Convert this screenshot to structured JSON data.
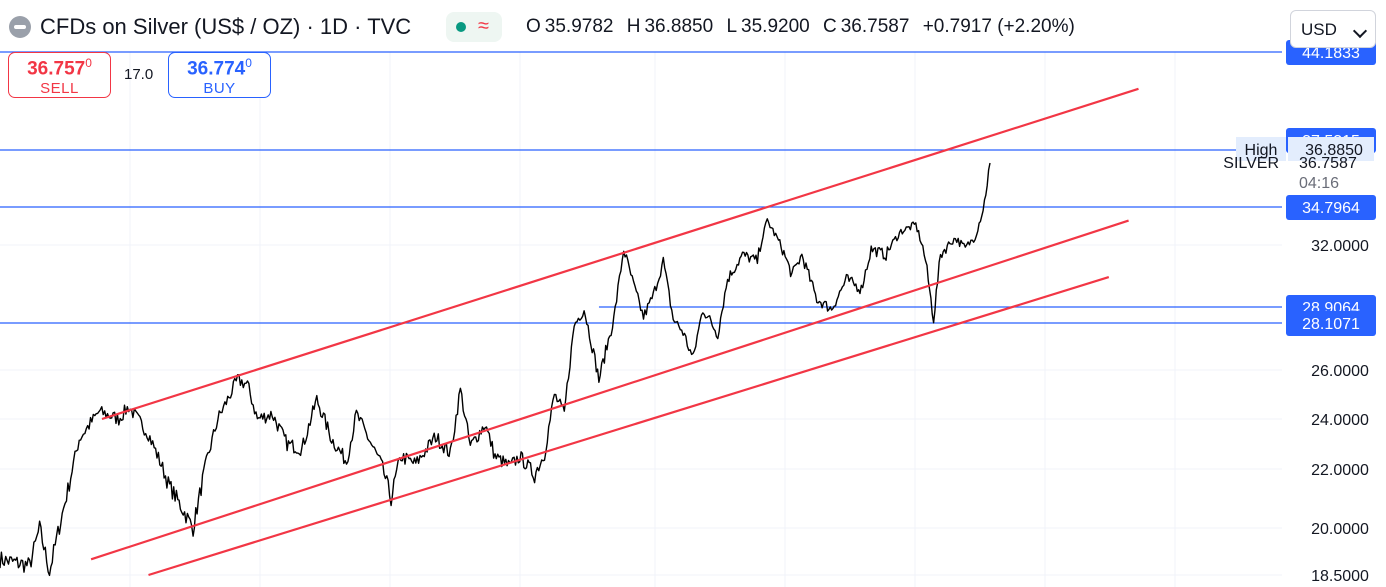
{
  "header": {
    "title": "CFDs on Silver (US$ / OZ) · 1D · TVC",
    "ohlc": [
      {
        "key": "O",
        "value": "35.9782"
      },
      {
        "key": "H",
        "value": "36.8850"
      },
      {
        "key": "L",
        "value": "35.9200"
      },
      {
        "key": "C",
        "value": "36.7587"
      }
    ],
    "change": "+0.7917 (+2.20%)",
    "currency": "USD"
  },
  "trade": {
    "sell_price": "36.757",
    "sell_price_sup": "0",
    "sell_label": "SELL",
    "spread": "17.0",
    "buy_price": "36.774",
    "buy_price_sup": "0",
    "buy_label": "BUY"
  },
  "colors": {
    "price_line": "#000000",
    "channel": "#f23645",
    "hline": "#2962ff",
    "label_bg": "#2962ff",
    "high_bg": "#e3edfd"
  },
  "chart_data": {
    "type": "line",
    "title": "CFDs on Silver (US$ / OZ) · 1D · TVC",
    "y_axis_ticks": [
      32.0,
      26.0,
      24.0,
      22.0,
      20.0,
      18.5
    ],
    "y_axis_tick_labels": [
      "32.0000",
      "26.0000",
      "24.0000",
      "22.0000",
      "20.0000",
      "18.5000"
    ],
    "x_range": [
      0,
      100
    ],
    "price_series": {
      "name": "SILVER",
      "anchors": [
        [
          0,
          19.0
        ],
        [
          3,
          18.8
        ],
        [
          4,
          20.0
        ],
        [
          5,
          18.6
        ],
        [
          7,
          21.5
        ],
        [
          8,
          23.2
        ],
        [
          10,
          24.3
        ],
        [
          12,
          24.0
        ],
        [
          13,
          24.5
        ],
        [
          15,
          23.4
        ],
        [
          17,
          21.5
        ],
        [
          18.5,
          20.6
        ],
        [
          19.5,
          20.0
        ],
        [
          21,
          22.5
        ],
        [
          22,
          24.0
        ],
        [
          24,
          25.6
        ],
        [
          25,
          25.4
        ],
        [
          26,
          24.0
        ],
        [
          27.5,
          24.2
        ],
        [
          29,
          23.0
        ],
        [
          30.5,
          22.8
        ],
        [
          32,
          24.8
        ],
        [
          33.5,
          23.2
        ],
        [
          35,
          22.3
        ],
        [
          36,
          24.2
        ],
        [
          37,
          23.4
        ],
        [
          38.5,
          22.2
        ],
        [
          39.5,
          21.0
        ],
        [
          40.5,
          22.5
        ],
        [
          42,
          22.2
        ],
        [
          44,
          23.3
        ],
        [
          45.5,
          22.6
        ],
        [
          46.5,
          25.2
        ],
        [
          47.5,
          22.9
        ],
        [
          49,
          23.8
        ],
        [
          50,
          22.5
        ],
        [
          51.5,
          22.1
        ],
        [
          52.5,
          22.5
        ],
        [
          54,
          21.8
        ],
        [
          55,
          22.6
        ],
        [
          56,
          25.0
        ],
        [
          57,
          24.2
        ],
        [
          58,
          28.0
        ],
        [
          59,
          28.8
        ],
        [
          60.5,
          25.6
        ],
        [
          62,
          28.3
        ],
        [
          63,
          31.8
        ],
        [
          64,
          30.0
        ],
        [
          65,
          28.4
        ],
        [
          66,
          29.5
        ],
        [
          67,
          31.2
        ],
        [
          68,
          28.3
        ],
        [
          69,
          27.7
        ],
        [
          70,
          26.5
        ],
        [
          71,
          28.8
        ],
        [
          72.5,
          27.6
        ],
        [
          73.5,
          30.3
        ],
        [
          75,
          31.5
        ],
        [
          76.5,
          31.2
        ],
        [
          77.5,
          33.8
        ],
        [
          78.5,
          32.5
        ],
        [
          80,
          30.5
        ],
        [
          81,
          31.5
        ],
        [
          82.5,
          29.3
        ],
        [
          84,
          28.8
        ],
        [
          85.5,
          30.3
        ],
        [
          87,
          29.8
        ],
        [
          88,
          31.8
        ],
        [
          89.5,
          31.5
        ],
        [
          91,
          33.0
        ],
        [
          92.5,
          33.5
        ],
        [
          93.5,
          31.2
        ],
        [
          94.3,
          28.3
        ],
        [
          95,
          31.5
        ],
        [
          96.5,
          32.5
        ],
        [
          97.5,
          31.8
        ],
        [
          98.5,
          32.6
        ],
        [
          99.3,
          34.6
        ],
        [
          100,
          36.7587
        ]
      ],
      "noise": 0.28
    },
    "hlines": [
      {
        "value": 44.1833,
        "label": "44.1833",
        "x_start": 0
      },
      {
        "value": 37.5315,
        "label": "37.5315",
        "line": false
      },
      {
        "value": 36.885,
        "label": "36.8850",
        "tag": "High",
        "x_start": 0
      },
      {
        "value": 34.7964,
        "label": "34.7964",
        "x_start": 0
      },
      {
        "value": 28.9064,
        "label": "28.9064",
        "x_start": 60.5
      },
      {
        "value": 28.1071,
        "label": "28.1071",
        "x_start": 0
      }
    ],
    "last_price": {
      "value": 36.7587,
      "label": "36.7587",
      "symbol": "SILVER",
      "countdown": "04:16"
    },
    "trend_lines": [
      {
        "from": [
          10.3,
          24.0
        ],
        "to": [
          115,
          41.4
        ]
      },
      {
        "from": [
          9.2,
          19.0
        ],
        "to": [
          114,
          33.8
        ]
      },
      {
        "from": [
          15,
          18.5
        ],
        "to": [
          112,
          30.4
        ]
      }
    ]
  }
}
